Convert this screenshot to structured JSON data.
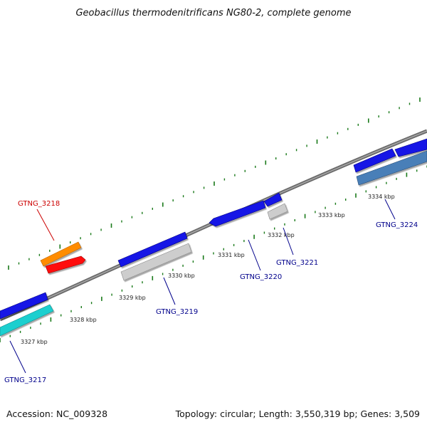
{
  "title": "Geobacillus thermodenitrificans NG80-2, complete genome",
  "footer": {
    "accession": "Accession: NC_009328",
    "summary": "Topology: circular; Length: 3,550,319 bp; Genes: 3,509"
  },
  "colors": {
    "backbone": "#7a7a7a",
    "tick": "#1a7a1a",
    "gene_label": "#00008b",
    "highlight_label": "#cc0000",
    "blue": "#1515e6",
    "orange": "#ff8c00",
    "red": "#ff1010",
    "gray": "#c8c8c8",
    "cyan": "#1ccfcf",
    "steelblue": "#4a7fb8"
  },
  "kbp_labels": [
    "3327 kbp",
    "3328 kbp",
    "3329 kbp",
    "3330 kbp",
    "3331 kbp",
    "3332 kbp",
    "3333 kbp",
    "3334 kbp"
  ],
  "gene_labels": [
    "GTNG_3217",
    "GTNG_3218",
    "GTNG_3219",
    "GTNG_3220",
    "GTNG_3221",
    "GTNG_3224"
  ]
}
